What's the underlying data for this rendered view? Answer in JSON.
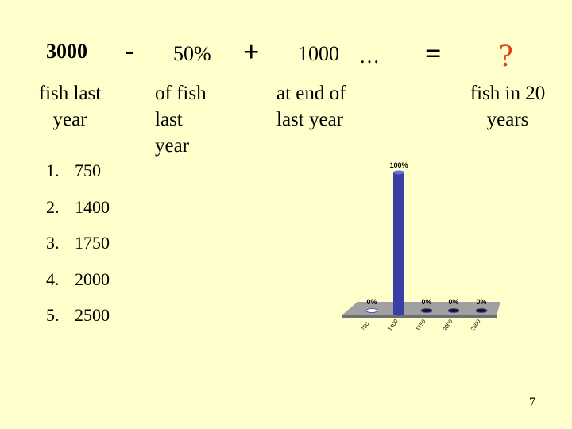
{
  "equation": {
    "term1": "3000",
    "op_minus": "-",
    "term2": "50%",
    "op_plus": "+",
    "term3": "1000",
    "ellipsis": "…",
    "op_equals": "=",
    "unknown": "?"
  },
  "descriptions": {
    "term1": "fish last year",
    "term2": "of fish last year",
    "term3": "at end of last year",
    "unknown": "fish in 20 years"
  },
  "options": [
    {
      "num": "1.",
      "label": "750"
    },
    {
      "num": "2.",
      "label": "1400"
    },
    {
      "num": "3.",
      "label": "1750"
    },
    {
      "num": "4.",
      "label": "2000"
    },
    {
      "num": "5.",
      "label": "2500"
    }
  ],
  "colors": {
    "background": "#ffffcc",
    "bar": "#3a3fa8",
    "platform": "#a0a0a0",
    "question_mark": "#e0401a"
  },
  "chart_data": {
    "type": "bar",
    "categories": [
      "750",
      "1400",
      "1750",
      "2000",
      "2500"
    ],
    "values": [
      0,
      100,
      0,
      0,
      0
    ],
    "data_labels": [
      "0%",
      "100%",
      "0%",
      "0%",
      "0%"
    ],
    "ylim": [
      0,
      100
    ],
    "grid": false,
    "legend": "none"
  },
  "page_number": "7"
}
